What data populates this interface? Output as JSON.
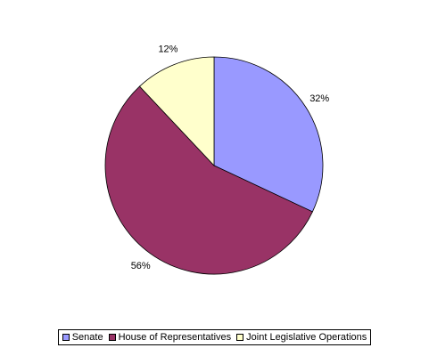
{
  "chart_data": {
    "type": "pie",
    "categories": [
      "Senate",
      "House of Representatives",
      "Joint Legislative Operations"
    ],
    "values": [
      32,
      56,
      12
    ],
    "value_labels": [
      "32%",
      "56%",
      "12%"
    ],
    "colors": [
      "#9999ff",
      "#993366",
      "#ffffcc"
    ],
    "legend": "bottom"
  }
}
